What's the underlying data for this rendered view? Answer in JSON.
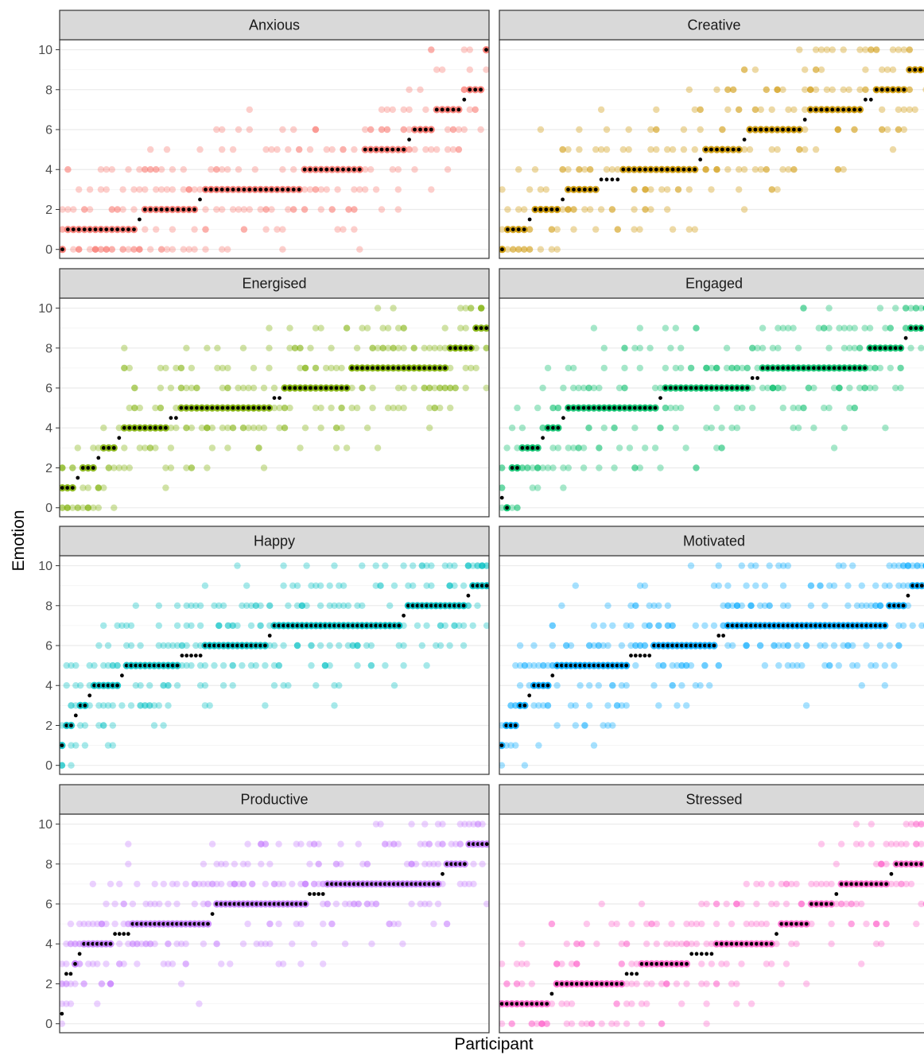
{
  "chart_data": {
    "type": "scatter",
    "xlabel": "Participant",
    "ylabel": "Emotion",
    "ylim": [
      0,
      10.5
    ],
    "yticks": [
      0,
      2,
      4,
      6,
      8,
      10
    ],
    "x_ticks_shown": false,
    "grid": true,
    "layout": "facet grid, 4 rows x 2 columns",
    "point_opacity": 0.4,
    "median_marker_color": "#000000",
    "panels": [
      {
        "name": "Anxious",
        "color": "#F8766D",
        "medians": [
          0,
          1,
          1,
          1,
          1,
          1,
          1,
          1,
          1,
          1,
          1,
          1,
          1,
          1,
          1.5,
          2,
          2,
          2,
          2,
          2,
          2,
          2,
          2,
          2,
          2,
          2.5,
          3,
          3,
          3,
          3,
          3,
          3,
          3,
          3,
          3,
          3,
          3,
          3,
          3,
          3,
          3,
          3,
          3,
          3,
          4,
          4,
          4,
          4,
          4,
          4,
          4,
          4,
          4,
          4,
          4,
          5,
          5,
          5,
          5,
          5,
          5,
          5,
          5,
          5.5,
          6,
          6,
          6,
          6,
          7,
          7,
          7,
          7,
          7,
          7.5,
          8,
          8,
          8,
          10
        ]
      },
      {
        "name": "Creative",
        "color": "#CD9600",
        "medians": [
          0,
          1,
          1,
          1,
          1,
          1.5,
          2,
          2,
          2,
          2,
          2,
          2.5,
          3,
          3,
          3,
          3,
          3,
          3,
          3.5,
          3.5,
          3.5,
          3.5,
          4,
          4,
          4,
          4,
          4,
          4,
          4,
          4,
          4,
          4,
          4,
          4,
          4,
          4,
          4.5,
          5,
          5,
          5,
          5,
          5,
          5,
          5,
          5.5,
          6,
          6,
          6,
          6,
          6,
          6,
          6,
          6,
          6,
          6,
          6.5,
          7,
          7,
          7,
          7,
          7,
          7,
          7,
          7,
          7,
          7,
          7.5,
          7.5,
          8,
          8,
          8,
          8,
          8,
          8,
          9,
          9,
          9,
          9
        ]
      },
      {
        "name": "Energised",
        "color": "#7CAE00",
        "medians": [
          1,
          1,
          1,
          1.5,
          2,
          2,
          2,
          2.5,
          3,
          3,
          3,
          3.5,
          4,
          4,
          4,
          4,
          4,
          4,
          4,
          4,
          4,
          4.5,
          4.5,
          5,
          5,
          5,
          5,
          5,
          5,
          5,
          5,
          5,
          5,
          5,
          5,
          5,
          5,
          5,
          5,
          5,
          5,
          5.5,
          5.5,
          6,
          6,
          6,
          6,
          6,
          6,
          6,
          6,
          6,
          6,
          6,
          6,
          6,
          7,
          7,
          7,
          7,
          7,
          7,
          7,
          7,
          7,
          7,
          7,
          7,
          7,
          7,
          7,
          7,
          7,
          7,
          7,
          8,
          8,
          8,
          8,
          8,
          9,
          9,
          9
        ]
      },
      {
        "name": "Engaged",
        "color": "#00BE67",
        "medians": [
          0.5,
          0,
          2,
          2,
          3,
          3,
          3,
          3,
          3.5,
          4,
          4,
          4,
          4.5,
          5,
          5,
          5,
          5,
          5,
          5,
          5,
          5,
          5,
          5,
          5,
          5,
          5,
          5,
          5,
          5,
          5,
          5,
          5.5,
          6,
          6,
          6,
          6,
          6,
          6,
          6,
          6,
          6,
          6,
          6,
          6,
          6,
          6,
          6,
          6,
          6,
          6.5,
          6.5,
          7,
          7,
          7,
          7,
          7,
          7,
          7,
          7,
          7,
          7,
          7,
          7,
          7,
          7,
          7,
          7,
          7,
          7,
          7,
          7,
          7,
          8,
          8,
          8,
          8,
          8,
          8,
          8,
          8.5,
          9,
          9,
          9,
          9.5
        ]
      },
      {
        "name": "Happy",
        "color": "#00BFC4",
        "medians": [
          1,
          2,
          2,
          2.5,
          3,
          3,
          3.5,
          4,
          4,
          4,
          4,
          4,
          4,
          4.5,
          5,
          5,
          5,
          5,
          5,
          5,
          5,
          5,
          5,
          5,
          5,
          5,
          5.5,
          5.5,
          5.5,
          5.5,
          5.5,
          6,
          6,
          6,
          6,
          6,
          6,
          6,
          6,
          6,
          6,
          6,
          6,
          6,
          6,
          6.5,
          7,
          7,
          7,
          7,
          7,
          7,
          7,
          7,
          7,
          7,
          7,
          7,
          7,
          7,
          7,
          7,
          7,
          7,
          7,
          7,
          7,
          7,
          7,
          7,
          7,
          7,
          7,
          7,
          7.5,
          8,
          8,
          8,
          8,
          8,
          8,
          8,
          8,
          8,
          8,
          8,
          8,
          8,
          8.5,
          9,
          9,
          9,
          9
        ]
      },
      {
        "name": "Motivated",
        "color": "#00A9FF",
        "medians": [
          1,
          2,
          2,
          2,
          3,
          3,
          3.5,
          4,
          4,
          4,
          4,
          4.5,
          5,
          5,
          5,
          5,
          5,
          5,
          5,
          5,
          5,
          5,
          5,
          5,
          5,
          5,
          5,
          5,
          5.5,
          5.5,
          5.5,
          5.5,
          5.5,
          6,
          6,
          6,
          6,
          6,
          6,
          6,
          6,
          6,
          6,
          6,
          6,
          6,
          6,
          6.5,
          6.5,
          7,
          7,
          7,
          7,
          7,
          7,
          7,
          7,
          7,
          7,
          7,
          7,
          7,
          7,
          7,
          7,
          7,
          7,
          7,
          7,
          7,
          7,
          7,
          7,
          7,
          7,
          7,
          7,
          7,
          7,
          7,
          7,
          7,
          7,
          7,
          8,
          8,
          8,
          8,
          8.5,
          9,
          9,
          9,
          10
        ]
      },
      {
        "name": "Productive",
        "color": "#C77CFF",
        "medians": [
          0.5,
          2.5,
          2.5,
          3,
          3.5,
          4,
          4,
          4,
          4,
          4,
          4,
          4,
          4.5,
          4.5,
          4.5,
          4.5,
          5,
          5,
          5,
          5,
          5,
          5,
          5,
          5,
          5,
          5,
          5,
          5,
          5,
          5,
          5,
          5,
          5,
          5,
          5.5,
          6,
          6,
          6,
          6,
          6,
          6,
          6,
          6,
          6,
          6,
          6,
          6,
          6,
          6,
          6,
          6,
          6,
          6,
          6,
          6,
          6,
          6.5,
          6.5,
          6.5,
          6.5,
          7,
          7,
          7,
          7,
          7,
          7,
          7,
          7,
          7,
          7,
          7,
          7,
          7,
          7,
          7,
          7,
          7,
          7,
          7,
          7,
          7,
          7,
          7,
          7,
          7,
          7,
          7.5,
          8,
          8,
          8,
          8,
          8,
          9,
          9,
          9,
          9,
          9
        ]
      },
      {
        "name": "Stressed",
        "color": "#FF61CC",
        "medians": [
          1,
          1,
          1,
          1,
          1,
          1,
          1,
          1,
          1,
          1,
          1.5,
          2,
          2,
          2,
          2,
          2,
          2,
          2,
          2,
          2,
          2,
          2,
          2,
          2,
          2,
          2.5,
          2.5,
          2.5,
          3,
          3,
          3,
          3,
          3,
          3,
          3,
          3,
          3,
          3,
          3.5,
          3.5,
          3.5,
          3.5,
          3.5,
          4,
          4,
          4,
          4,
          4,
          4,
          4,
          4,
          4,
          4,
          4,
          4,
          4.5,
          5,
          5,
          5,
          5,
          5,
          5,
          6,
          6,
          6,
          6,
          6,
          6.5,
          7,
          7,
          7,
          7,
          7,
          7,
          7,
          7,
          7,
          7,
          7.5,
          8,
          8,
          8,
          8,
          8,
          8,
          8
        ]
      }
    ]
  }
}
